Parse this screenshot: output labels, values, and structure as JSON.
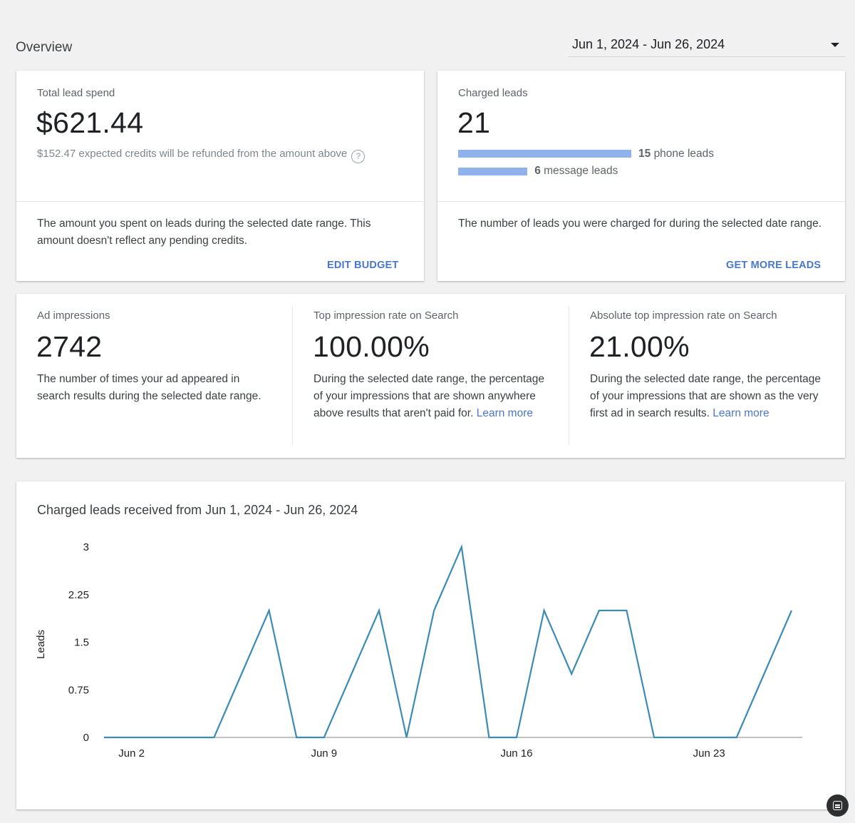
{
  "header": {
    "title": "Overview",
    "date_range": "Jun 1, 2024 - Jun 26, 2024"
  },
  "spend_card": {
    "label": "Total lead spend",
    "value": "$621.44",
    "credits_note": "$152.47 expected credits will be refunded from the amount above",
    "description": "The amount you spent on leads during the selected date range. This amount doesn't reflect any pending credits.",
    "action": "EDIT BUDGET"
  },
  "leads_card": {
    "label": "Charged leads",
    "value": "21",
    "phone_count": "15",
    "phone_label": "phone leads",
    "phone_leads": 15,
    "message_count": "6",
    "message_label": "message leads",
    "message_leads": 6,
    "description": "The number of leads you were charged for during the selected date range.",
    "action": "GET MORE LEADS",
    "bar_color": "#8fb1ec"
  },
  "impressions": {
    "ad": {
      "label": "Ad impressions",
      "value": "2742",
      "description": "The number of times your ad appeared in search results during the selected date range."
    },
    "top": {
      "label": "Top impression rate on Search",
      "value": "100.00%",
      "description": "During the selected date range, the percentage of your impressions that are shown anywhere above results that aren't paid for.",
      "link": "Learn more"
    },
    "abs_top": {
      "label": "Absolute top impression rate on Search",
      "value": "21.00%",
      "description": "During the selected date range, the percentage of your impressions that are shown as the very first ad in search results.",
      "link": "Learn more"
    }
  },
  "chart": {
    "title": "Charged leads received from Jun 1, 2024 - Jun 26, 2024"
  },
  "chart_data": {
    "type": "line",
    "title": "Charged leads received from Jun 1, 2024 - Jun 26, 2024",
    "xlabel": "",
    "ylabel": "Leads",
    "x": [
      "Jun 1",
      "Jun 2",
      "Jun 3",
      "Jun 4",
      "Jun 5",
      "Jun 6",
      "Jun 7",
      "Jun 8",
      "Jun 9",
      "Jun 10",
      "Jun 11",
      "Jun 12",
      "Jun 13",
      "Jun 14",
      "Jun 15",
      "Jun 16",
      "Jun 17",
      "Jun 18",
      "Jun 19",
      "Jun 20",
      "Jun 21",
      "Jun 22",
      "Jun 23",
      "Jun 24",
      "Jun 25",
      "Jun 26"
    ],
    "x_ticks": [
      "Jun 2",
      "Jun 9",
      "Jun 16",
      "Jun 23"
    ],
    "series": [
      {
        "values": [
          0,
          0,
          0,
          0,
          0,
          1,
          2,
          0,
          0,
          1,
          2,
          0,
          2,
          3,
          0,
          0,
          2,
          1,
          2,
          2,
          0,
          0,
          0,
          0,
          1,
          2
        ]
      }
    ],
    "y_ticks": [
      "0",
      "0.75",
      "1.5",
      "2.25",
      "3"
    ],
    "ylim": [
      0,
      3
    ],
    "line_color": "#3a8bb5",
    "grid": false
  }
}
